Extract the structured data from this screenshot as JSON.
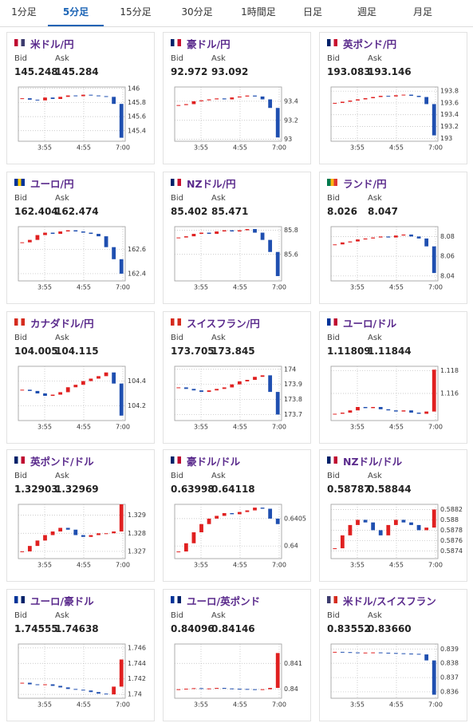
{
  "tabs": {
    "items": [
      "1分足",
      "5分足",
      "15分足",
      "30分足",
      "1時間足",
      "日足",
      "週足",
      "月足"
    ],
    "active": 1
  },
  "cards": [
    {
      "pair": "米ドル/円",
      "flag": [
        "#bf0a30",
        "#fff",
        "#3c3b6e"
      ],
      "bid_label": "Bid",
      "ask_label": "Ask",
      "bid": "145.248",
      "ask": "145.284",
      "chart": {
        "type": "candlestick",
        "x_labels": [
          "3:55",
          "4:55",
          "7:00"
        ],
        "ylim": [
          145.25,
          146.02
        ],
        "yticks": [
          146,
          145.8,
          145.6,
          145.4
        ],
        "up_color": "#e02020",
        "down_color": "#1f4fb0",
        "values": [
          145.86,
          145.84,
          145.83,
          145.87,
          145.85,
          145.88,
          145.9,
          145.89,
          145.91,
          145.9,
          145.89,
          145.88,
          145.78,
          145.3
        ]
      }
    },
    {
      "pair": "豪ドル/円",
      "flag": [
        "#012169",
        "#fff",
        "#c8102e"
      ],
      "bid_label": "Bid",
      "ask_label": "Ask",
      "bid": "92.972",
      "ask": "93.092",
      "chart": {
        "type": "candlestick",
        "x_labels": [
          "3:55",
          "4:55",
          "7:00"
        ],
        "ylim": [
          92.98,
          93.55
        ],
        "yticks": [
          93.4,
          93.2,
          93
        ],
        "up_color": "#e02020",
        "down_color": "#1f4fb0",
        "values": [
          93.36,
          93.37,
          93.4,
          93.41,
          93.42,
          93.43,
          93.42,
          93.44,
          93.45,
          93.46,
          93.45,
          93.42,
          93.33,
          93.02
        ]
      }
    },
    {
      "pair": "英ポンド/円",
      "flag": [
        "#012169",
        "#fff",
        "#c8102e"
      ],
      "bid_label": "Bid",
      "ask_label": "Ask",
      "bid": "193.083",
      "ask": "193.146",
      "chart": {
        "type": "candlestick",
        "x_labels": [
          "3:55",
          "4:55",
          "7:00"
        ],
        "ylim": [
          192.95,
          193.87
        ],
        "yticks": [
          193.8,
          193.6,
          193.4,
          193.2,
          193
        ],
        "up_color": "#e02020",
        "down_color": "#1f4fb0",
        "values": [
          193.6,
          193.62,
          193.64,
          193.66,
          193.68,
          193.7,
          193.72,
          193.71,
          193.73,
          193.74,
          193.72,
          193.7,
          193.58,
          193.05
        ]
      }
    },
    {
      "pair": "ユーロ/円",
      "flag": [
        "#003399",
        "#ffcc00",
        "#003399"
      ],
      "bid_label": "Bid",
      "ask_label": "Ask",
      "bid": "162.404",
      "ask": "162.474",
      "chart": {
        "type": "candlestick",
        "x_labels": [
          "3:55",
          "4:55",
          "7:00"
        ],
        "ylim": [
          162.34,
          162.79
        ],
        "yticks": [
          162.6,
          162.4
        ],
        "up_color": "#e02020",
        "down_color": "#1f4fb0",
        "values": [
          162.66,
          162.68,
          162.72,
          162.74,
          162.73,
          162.75,
          162.76,
          162.75,
          162.74,
          162.73,
          162.71,
          162.62,
          162.52,
          162.4
        ]
      }
    },
    {
      "pair": "NZドル/円",
      "flag": [
        "#012169",
        "#fff",
        "#c8102e"
      ],
      "bid_label": "Bid",
      "ask_label": "Ask",
      "bid": "85.402",
      "ask": "85.471",
      "chart": {
        "type": "candlestick",
        "x_labels": [
          "3:55",
          "4:55",
          "7:00"
        ],
        "ylim": [
          85.38,
          85.83
        ],
        "yticks": [
          85.8,
          85.6
        ],
        "up_color": "#e02020",
        "down_color": "#1f4fb0",
        "values": [
          85.74,
          85.75,
          85.77,
          85.78,
          85.77,
          85.79,
          85.8,
          85.79,
          85.8,
          85.81,
          85.78,
          85.72,
          85.62,
          85.42
        ]
      }
    },
    {
      "pair": "ランド/円",
      "flag": [
        "#007a4d",
        "#ffb612",
        "#de3831"
      ],
      "bid_label": "Bid",
      "ask_label": "Ask",
      "bid": "8.026",
      "ask": "8.047",
      "chart": {
        "type": "candlestick",
        "x_labels": [
          "3:55",
          "4:55",
          "7:00"
        ],
        "ylim": [
          8.035,
          8.09
        ],
        "yticks": [
          8.08,
          8.06,
          8.04
        ],
        "up_color": "#e02020",
        "down_color": "#1f4fb0",
        "values": [
          8.072,
          8.074,
          8.075,
          8.077,
          8.078,
          8.079,
          8.08,
          8.079,
          8.081,
          8.082,
          8.08,
          8.078,
          8.07,
          8.043
        ]
      }
    },
    {
      "pair": "カナダドル/円",
      "flag": [
        "#d52b1e",
        "#fff",
        "#d52b1e"
      ],
      "bid_label": "Bid",
      "ask_label": "Ask",
      "bid": "104.005",
      "ask": "104.115",
      "chart": {
        "type": "candlestick",
        "x_labels": [
          "3:55",
          "4:55",
          "7:00"
        ],
        "ylim": [
          104.08,
          104.52
        ],
        "yticks": [
          104.4,
          104.2
        ],
        "up_color": "#e02020",
        "down_color": "#1f4fb0",
        "values": [
          104.33,
          104.32,
          104.3,
          104.28,
          104.29,
          104.31,
          104.35,
          104.37,
          104.4,
          104.42,
          104.44,
          104.47,
          104.38,
          104.12
        ]
      }
    },
    {
      "pair": "スイスフラン/円",
      "flag": [
        "#d52b1e",
        "#fff",
        "#d52b1e"
      ],
      "bid_label": "Bid",
      "ask_label": "Ask",
      "bid": "173.705",
      "ask": "173.845",
      "chart": {
        "type": "candlestick",
        "x_labels": [
          "3:55",
          "4:55",
          "7:00"
        ],
        "ylim": [
          173.66,
          174.02
        ],
        "yticks": [
          174,
          173.9,
          173.8,
          173.7
        ],
        "up_color": "#e02020",
        "down_color": "#1f4fb0",
        "values": [
          173.88,
          173.87,
          173.86,
          173.85,
          173.86,
          173.87,
          173.88,
          173.9,
          173.92,
          173.93,
          173.95,
          173.96,
          173.85,
          173.7
        ]
      }
    },
    {
      "pair": "ユーロ/ドル",
      "flag": [
        "#003399",
        "#fff",
        "#bf0a30"
      ],
      "bid_label": "Bid",
      "ask_label": "Ask",
      "bid": "1.11809",
      "ask": "1.11844",
      "chart": {
        "type": "candlestick",
        "x_labels": [
          "3:55",
          "4:55",
          "7:00"
        ],
        "ylim": [
          1.1136,
          1.1184
        ],
        "yticks": [
          1.118,
          1.116
        ],
        "up_color": "#e02020",
        "down_color": "#1f4fb0",
        "values": [
          1.1142,
          1.1143,
          1.1145,
          1.1148,
          1.1147,
          1.1148,
          1.1146,
          1.1145,
          1.1144,
          1.1145,
          1.1143,
          1.1142,
          1.1144,
          1.1181
        ]
      }
    },
    {
      "pair": "英ポンド/ドル",
      "flag": [
        "#012169",
        "#fff",
        "#bf0a30"
      ],
      "bid_label": "Bid",
      "ask_label": "Ask",
      "bid": "1.32903",
      "ask": "1.32969",
      "chart": {
        "type": "candlestick",
        "x_labels": [
          "3:55",
          "4:55",
          "7:00"
        ],
        "ylim": [
          1.3266,
          1.3296
        ],
        "yticks": [
          1.329,
          1.328,
          1.327
        ],
        "up_color": "#e02020",
        "down_color": "#1f4fb0",
        "values": [
          1.327,
          1.3273,
          1.3276,
          1.3279,
          1.3281,
          1.3283,
          1.3282,
          1.3279,
          1.3278,
          1.3279,
          1.328,
          1.328,
          1.3281,
          1.3296
        ]
      }
    },
    {
      "pair": "豪ドル/ドル",
      "flag": [
        "#012169",
        "#fff",
        "#bf0a30"
      ],
      "bid_label": "Bid",
      "ask_label": "Ask",
      "bid": "0.63998",
      "ask": "0.64118",
      "chart": {
        "type": "candlestick",
        "x_labels": [
          "3:55",
          "4:55",
          "7:00"
        ],
        "ylim": [
          0.63977,
          0.64076
        ],
        "yticks": [
          0.6405,
          0.64
        ],
        "up_color": "#e02020",
        "down_color": "#1f4fb0",
        "values": [
          0.6399,
          0.64005,
          0.64025,
          0.6404,
          0.6405,
          0.64055,
          0.6406,
          0.64058,
          0.64062,
          0.64065,
          0.6407,
          0.64068,
          0.6405,
          0.6404
        ]
      }
    },
    {
      "pair": "NZドル/ドル",
      "flag": [
        "#012169",
        "#fff",
        "#bf0a30"
      ],
      "bid_label": "Bid",
      "ask_label": "Ask",
      "bid": "0.58787",
      "ask": "0.58844",
      "chart": {
        "type": "candlestick",
        "x_labels": [
          "3:55",
          "4:55",
          "7:00"
        ],
        "ylim": [
          0.58725,
          0.5883
        ],
        "yticks": [
          0.5882,
          0.588,
          0.5878,
          0.5876,
          0.5874
        ],
        "up_color": "#e02020",
        "down_color": "#1f4fb0",
        "values": [
          0.58745,
          0.5877,
          0.5879,
          0.588,
          0.58795,
          0.5878,
          0.5877,
          0.5879,
          0.588,
          0.58795,
          0.5879,
          0.5878,
          0.58785,
          0.5882
        ]
      }
    },
    {
      "pair": "ユーロ/豪ドル",
      "flag": [
        "#003399",
        "#fff",
        "#012169"
      ],
      "bid_label": "Bid",
      "ask_label": "Ask",
      "bid": "1.74555",
      "ask": "1.74638",
      "chart": {
        "type": "candlestick",
        "x_labels": [
          "3:55",
          "4:55",
          "7:00"
        ],
        "ylim": [
          1.7395,
          1.7465
        ],
        "yticks": [
          1.746,
          1.744,
          1.742,
          1.74
        ],
        "up_color": "#e02020",
        "down_color": "#1f4fb0",
        "values": [
          1.7415,
          1.7413,
          1.7412,
          1.7413,
          1.7411,
          1.7409,
          1.7407,
          1.7406,
          1.7405,
          1.7403,
          1.7401,
          1.74,
          1.741,
          1.7445
        ]
      }
    },
    {
      "pair": "ユーロ/英ポンド",
      "flag": [
        "#003399",
        "#fff",
        "#012169"
      ],
      "bid_label": "Bid",
      "ask_label": "Ask",
      "bid": "0.84096",
      "ask": "0.84146",
      "chart": {
        "type": "candlestick",
        "x_labels": [
          "3:55",
          "4:55",
          "7:00"
        ],
        "ylim": [
          0.83965,
          0.84175
        ],
        "yticks": [
          0.841,
          0.84
        ],
        "up_color": "#e02020",
        "down_color": "#1f4fb0",
        "values": [
          0.84,
          0.84002,
          0.84004,
          0.84001,
          0.84003,
          0.84005,
          0.84003,
          0.84002,
          0.84001,
          0.84,
          0.83999,
          0.84,
          0.84005,
          0.8414
        ]
      }
    },
    {
      "pair": "米ドル/スイスフラン",
      "flag": [
        "#3c3b6e",
        "#fff",
        "#d52b1e"
      ],
      "bid_label": "Bid",
      "ask_label": "Ask",
      "bid": "0.83552",
      "ask": "0.83660",
      "chart": {
        "type": "candlestick",
        "x_labels": [
          "3:55",
          "4:55",
          "7:00"
        ],
        "ylim": [
          0.83555,
          0.83935
        ],
        "yticks": [
          0.839,
          0.838,
          0.837,
          0.836
        ],
        "up_color": "#e02020",
        "down_color": "#1f4fb0",
        "values": [
          0.8388,
          0.83878,
          0.83876,
          0.83874,
          0.83875,
          0.83876,
          0.83874,
          0.83872,
          0.8387,
          0.83868,
          0.83866,
          0.83862,
          0.8382,
          0.8358
        ]
      }
    }
  ]
}
